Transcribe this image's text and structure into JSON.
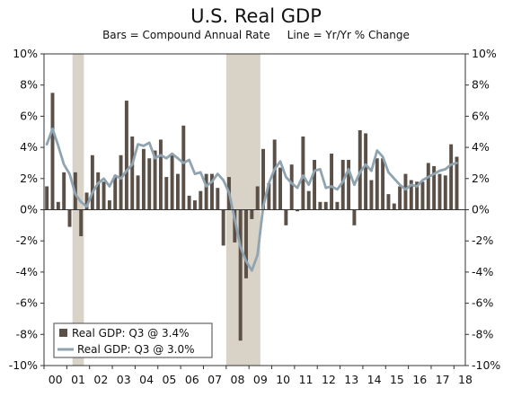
{
  "chart_data": {
    "type": "bar+line",
    "title": "U.S. Real GDP",
    "subtitle": "Bars = Compound Annual Rate     Line = Yr/Yr % Change",
    "ylim": [
      -10,
      10
    ],
    "yticks": [
      "-10%",
      "-8%",
      "-6%",
      "-4%",
      "-2%",
      "0%",
      "2%",
      "4%",
      "6%",
      "8%",
      "10%"
    ],
    "xticks": [
      "00",
      "01",
      "02",
      "03",
      "04",
      "05",
      "06",
      "07",
      "08",
      "09",
      "10",
      "11",
      "12",
      "13",
      "14",
      "15",
      "16",
      "17",
      "18"
    ],
    "grid": false,
    "legend_position": "bottom-left",
    "recessions": [
      {
        "start": 2001.25,
        "end": 2001.75
      },
      {
        "start": 2008.0,
        "end": 2009.5
      }
    ],
    "bar_series": {
      "name": "Real GDP: Q3 @ 3.4%",
      "color": "#5a5047",
      "start": "2000-Q1",
      "values": [
        1.5,
        7.5,
        0.5,
        2.4,
        -1.1,
        2.4,
        -1.7,
        1.1,
        3.5,
        2.4,
        1.8,
        0.6,
        2.2,
        3.5,
        7.0,
        4.7,
        2.2,
        3.9,
        3.3,
        3.8,
        4.5,
        2.1,
        3.5,
        2.3,
        5.4,
        0.9,
        0.6,
        1.2,
        2.3,
        2.3,
        1.4,
        -2.3,
        2.1,
        -2.1,
        -8.4,
        -4.4,
        -0.6,
        1.5,
        3.9,
        1.7,
        4.5,
        2.7,
        -1.0,
        2.9,
        -0.1,
        4.7,
        1.2,
        3.2,
        0.5,
        0.5,
        3.6,
        0.5,
        3.2,
        3.2,
        -1.0,
        5.1,
        4.9,
        1.9,
        3.3,
        3.3,
        1.0,
        0.4,
        1.5,
        2.3,
        1.9,
        1.8,
        1.8,
        3.0,
        2.8,
        2.3,
        2.2,
        4.2,
        3.4
      ]
    },
    "line_series": {
      "name": "Real GDP: Q3 @ 3.0%",
      "color": "#8fa4b0",
      "start": "2000-Q1",
      "values": [
        4.2,
        5.2,
        4.1,
        2.9,
        2.3,
        1.0,
        0.5,
        0.2,
        1.1,
        1.7,
        2.0,
        1.5,
        2.2,
        2.0,
        2.5,
        2.9,
        4.2,
        4.1,
        4.3,
        3.3,
        3.5,
        3.3,
        3.6,
        3.3,
        3.0,
        3.2,
        2.3,
        2.4,
        1.5,
        1.8,
        2.3,
        1.9,
        1.1,
        -0.6,
        -2.4,
        -3.3,
        -3.9,
        -2.9,
        0.2,
        1.7,
        2.6,
        3.1,
        2.1,
        1.7,
        1.4,
        2.2,
        1.6,
        2.5,
        2.6,
        1.4,
        1.5,
        1.3,
        1.8,
        2.6,
        1.6,
        2.4,
        2.9,
        2.5,
        3.8,
        3.4,
        2.4,
        2.0,
        1.6,
        1.3,
        1.6,
        1.5,
        1.9,
        2.1,
        2.3,
        2.5,
        2.6,
        2.9,
        3.0
      ]
    }
  }
}
